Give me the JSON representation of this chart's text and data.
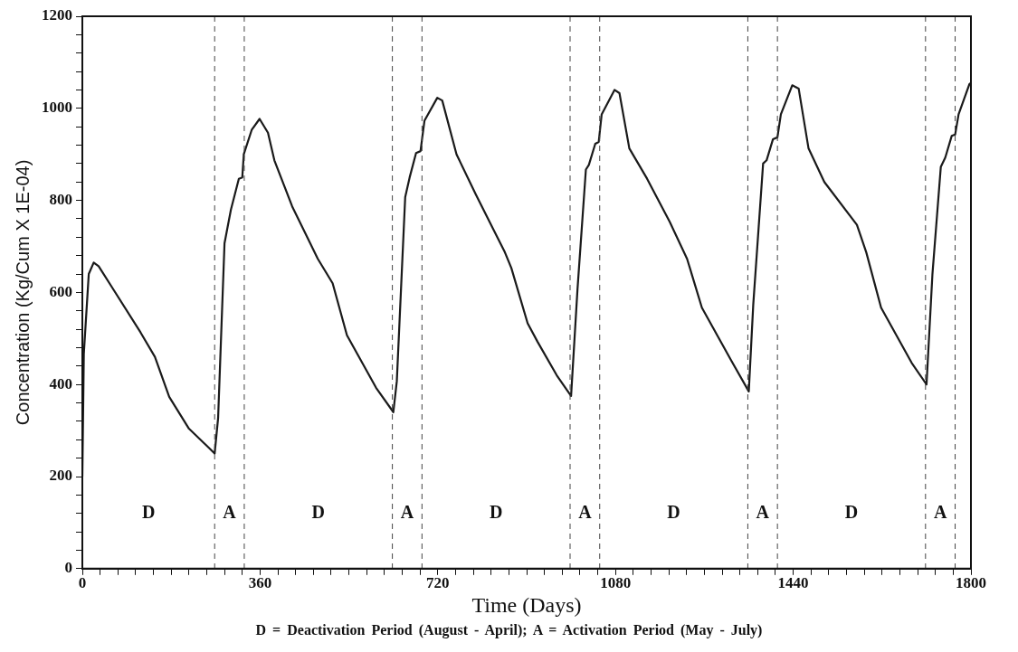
{
  "chart_data": {
    "type": "line",
    "xlabel": "Time (Days)",
    "ylabel": "Concentration (Kg/Cum X 1E-04)",
    "series": [
      {
        "color": "#1a1a1a",
        "x": [
          0,
          3,
          13,
          23,
          33,
          59,
          118,
          147,
          176,
          216,
          255,
          268,
          275,
          288,
          301,
          317,
          324,
          327,
          343,
          359,
          376,
          389,
          425,
          477,
          507,
          536,
          595,
          630,
          637,
          654,
          663,
          676,
          685,
          693,
          719,
          729,
          758,
          797,
          856,
          869,
          902,
          922,
          961,
          990,
          1003,
          1020,
          1026,
          1039,
          1046,
          1052,
          1078,
          1088,
          1108,
          1144,
          1190,
          1225,
          1255,
          1314,
          1350,
          1359,
          1379,
          1386,
          1399,
          1408,
          1415,
          1438,
          1451,
          1471,
          1503,
          1569,
          1588,
          1618,
          1680,
          1710,
          1722,
          1739,
          1748,
          1761,
          1768,
          1775,
          1797,
          1800
        ],
        "values": [
          200,
          467,
          640,
          665,
          657,
          613,
          513,
          460,
          373,
          304,
          264,
          250,
          327,
          707,
          780,
          847,
          850,
          900,
          953,
          977,
          947,
          887,
          787,
          673,
          620,
          507,
          393,
          340,
          407,
          807,
          850,
          903,
          907,
          973,
          1023,
          1017,
          900,
          813,
          687,
          653,
          533,
          493,
          420,
          375,
          607,
          867,
          877,
          923,
          927,
          987,
          1040,
          1033,
          913,
          847,
          753,
          673,
          567,
          453,
          385,
          573,
          880,
          887,
          933,
          937,
          987,
          1050,
          1043,
          913,
          840,
          747,
          687,
          567,
          447,
          400,
          640,
          873,
          893,
          940,
          943,
          987,
          1053,
          1055
        ]
      }
    ],
    "xlim": [
      0,
      1800
    ],
    "xticks": [
      0,
      {
        "value": 36,
        "label": null
      },
      {
        "value": 72,
        "label": null
      },
      {
        "value": 108,
        "label": null
      },
      {
        "value": 144,
        "label": null
      },
      {
        "value": 180,
        "label": null
      },
      {
        "value": 216,
        "label": null
      },
      {
        "value": 252,
        "label": null
      },
      {
        "value": 288,
        "label": null
      },
      {
        "value": 324,
        "label": null
      },
      360,
      {
        "value": 396,
        "label": null
      },
      {
        "value": 432,
        "label": null
      },
      {
        "value": 468,
        "label": null
      },
      {
        "value": 504,
        "label": null
      },
      {
        "value": 540,
        "label": null
      },
      {
        "value": 576,
        "label": null
      },
      {
        "value": 612,
        "label": null
      },
      {
        "value": 648,
        "label": null
      },
      {
        "value": 684,
        "label": null
      },
      720,
      {
        "value": 756,
        "label": null
      },
      {
        "value": 792,
        "label": null
      },
      {
        "value": 828,
        "label": null
      },
      {
        "value": 864,
        "label": null
      },
      {
        "value": 900,
        "label": null
      },
      {
        "value": 936,
        "label": null
      },
      {
        "value": 972,
        "label": null
      },
      {
        "value": 1008,
        "label": null
      },
      {
        "value": 1044,
        "label": null
      },
      1080,
      {
        "value": 1116,
        "label": null
      },
      {
        "value": 1152,
        "label": null
      },
      {
        "value": 1188,
        "label": null
      },
      {
        "value": 1224,
        "label": null
      },
      {
        "value": 1260,
        "label": null
      },
      {
        "value": 1296,
        "label": null
      },
      {
        "value": 1332,
        "label": null
      },
      {
        "value": 1368,
        "label": null
      },
      {
        "value": 1404,
        "label": null
      },
      1440,
      {
        "value": 1476,
        "label": null
      },
      {
        "value": 1512,
        "label": null
      },
      {
        "value": 1548,
        "label": null
      },
      {
        "value": 1584,
        "label": null
      },
      {
        "value": 1620,
        "label": null
      },
      {
        "value": 1656,
        "label": null
      },
      {
        "value": 1692,
        "label": null
      },
      {
        "value": 1728,
        "label": null
      },
      {
        "value": 1764,
        "label": null
      },
      1800
    ],
    "ylim": [
      0,
      1200
    ],
    "yticks": [
      0,
      {
        "value": 40,
        "label": null
      },
      {
        "value": 80,
        "label": null
      },
      {
        "value": 120,
        "label": null
      },
      {
        "value": 160,
        "label": null
      },
      200,
      {
        "value": 240,
        "label": null
      },
      {
        "value": 280,
        "label": null
      },
      {
        "value": 320,
        "label": null
      },
      {
        "value": 360,
        "label": null
      },
      400,
      {
        "value": 440,
        "label": null
      },
      {
        "value": 480,
        "label": null
      },
      {
        "value": 520,
        "label": null
      },
      {
        "value": 560,
        "label": null
      },
      600,
      {
        "value": 640,
        "label": null
      },
      {
        "value": 680,
        "label": null
      },
      {
        "value": 720,
        "label": null
      },
      {
        "value": 760,
        "label": null
      },
      800,
      {
        "value": 840,
        "label": null
      },
      {
        "value": 880,
        "label": null
      },
      {
        "value": 920,
        "label": null
      },
      {
        "value": 960,
        "label": null
      },
      1000,
      {
        "value": 1040,
        "label": null
      },
      {
        "value": 1080,
        "label": null
      },
      {
        "value": 1120,
        "label": null
      },
      {
        "value": 1160,
        "label": null
      },
      1200
    ],
    "grid": false,
    "legend": false,
    "marker": "none",
    "line_style": "solid",
    "ref_lines": [
      {
        "axis": "x",
        "value": 268,
        "line_style": "dashed",
        "color": "#444444"
      },
      {
        "axis": "x",
        "value": 328,
        "line_style": "dashed",
        "color": "#444444"
      },
      {
        "axis": "x",
        "value": 628,
        "line_style": "dashed",
        "color": "#444444"
      },
      {
        "axis": "x",
        "value": 688,
        "line_style": "dashed",
        "color": "#444444"
      },
      {
        "axis": "x",
        "value": 988,
        "line_style": "dashed",
        "color": "#444444"
      },
      {
        "axis": "x",
        "value": 1048,
        "line_style": "dashed",
        "color": "#444444"
      },
      {
        "axis": "x",
        "value": 1348,
        "line_style": "dashed",
        "color": "#444444"
      },
      {
        "axis": "x",
        "value": 1408,
        "line_style": "dashed",
        "color": "#444444"
      },
      {
        "axis": "x",
        "value": 1708,
        "line_style": "dashed",
        "color": "#444444"
      },
      {
        "axis": "x",
        "value": 1768,
        "line_style": "dashed",
        "color": "#444444"
      }
    ],
    "annotations": [
      "D",
      "A",
      "D",
      "A",
      "D",
      "A",
      "D",
      "A",
      "D",
      "A",
      "D = Deactivation Period (August - April); A = Activation Period (May - July)"
    ]
  }
}
